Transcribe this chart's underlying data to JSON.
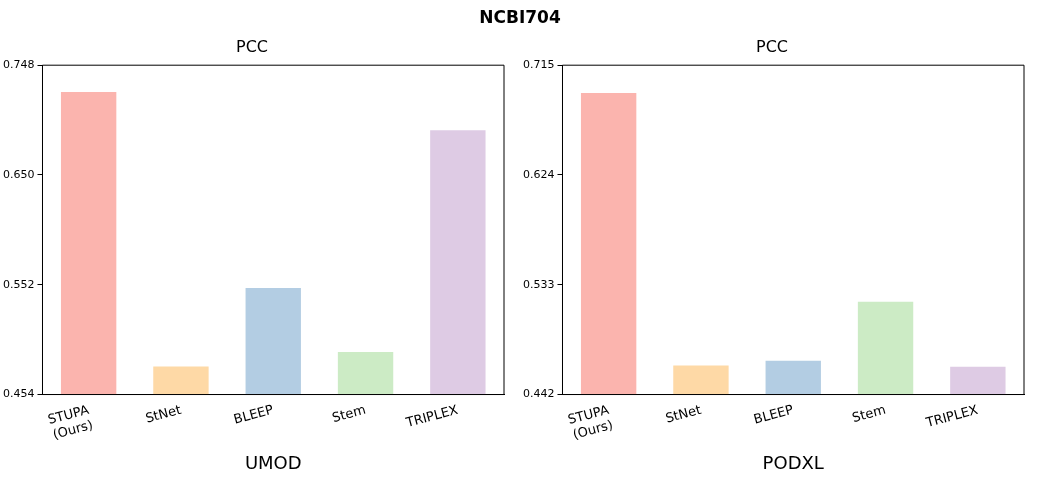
{
  "chart_data": [
    {
      "type": "bar",
      "title": "PCC",
      "xlabel": "UMOD",
      "annotations": [
        "NCBI704"
      ],
      "categories": [
        "STUPA\n(Ours)",
        "StNet",
        "BLEEP",
        "Stem",
        "TRIPLEX"
      ],
      "values": [
        0.724,
        0.479,
        0.549,
        0.492,
        0.69
      ],
      "colors": [
        "#fbb4ae",
        "#fed9a6",
        "#b3cde3",
        "#ccebc5",
        "#decbe4"
      ],
      "ylim": [
        0.454,
        0.748
      ],
      "yticks": [
        0.454,
        0.552,
        {
          "value": 0.65,
          "label": "0.650"
        },
        0.748
      ],
      "grid": false
    },
    {
      "type": "bar",
      "title": "PCC",
      "xlabel": "PODXL",
      "categories": [
        "STUPA\n(Ours)",
        "StNet",
        "BLEEP",
        "Stem",
        "TRIPLEX"
      ],
      "values": [
        0.692,
        0.466,
        0.47,
        0.519,
        0.465
      ],
      "colors": [
        "#fbb4ae",
        "#fed9a6",
        "#b3cde3",
        "#ccebc5",
        "#decbe4"
      ],
      "ylim": [
        0.442,
        0.715
      ],
      "yticks": [
        0.442,
        0.533,
        0.624,
        0.715
      ],
      "grid": false
    }
  ]
}
